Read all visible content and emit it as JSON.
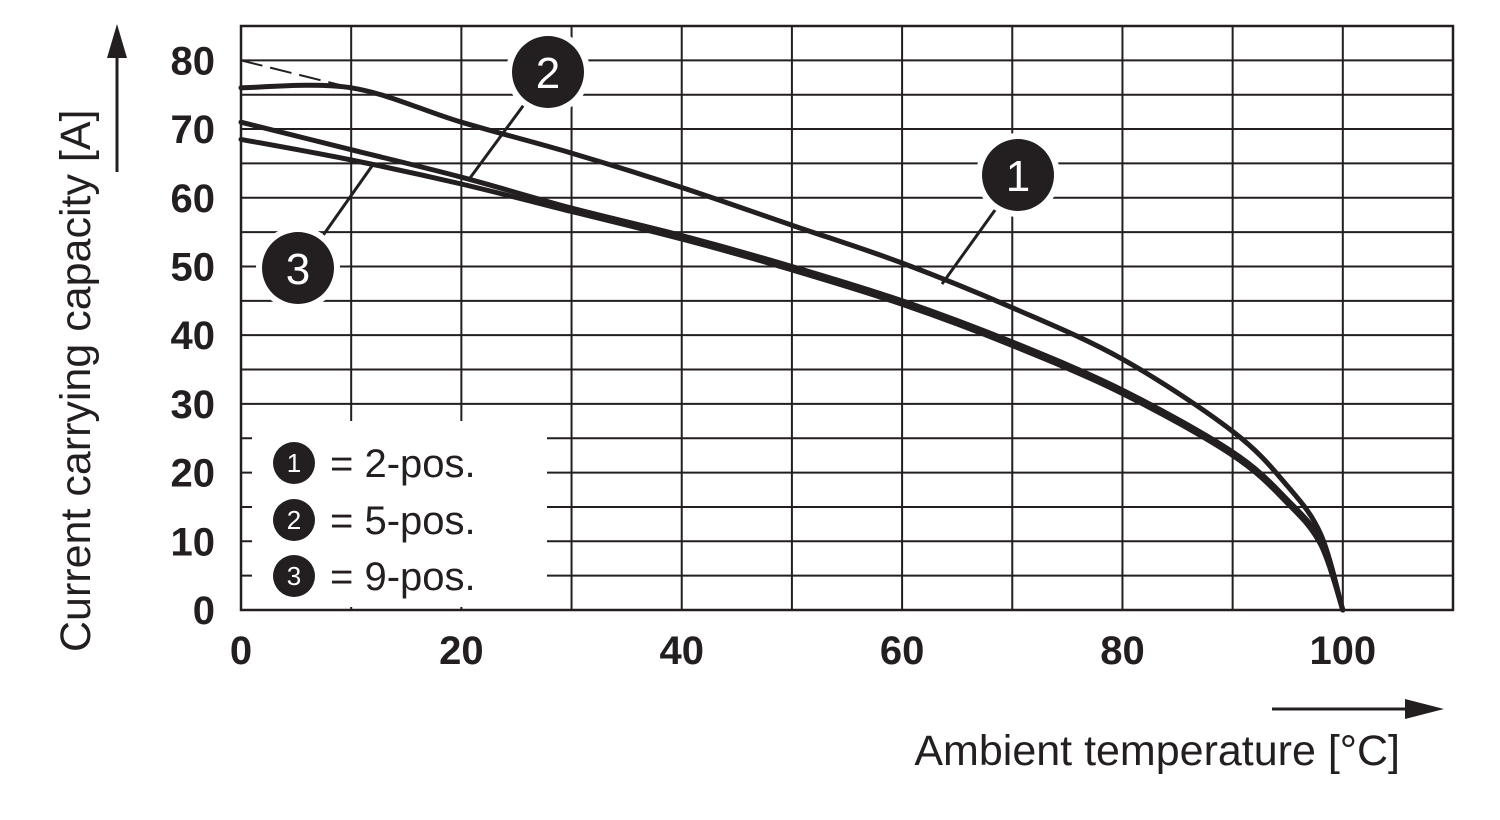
{
  "chart_data": {
    "type": "line",
    "xlabel": "Ambient temperature [°C]",
    "ylabel": "Current carrying capacity [A]",
    "xlim": [
      0,
      110
    ],
    "ylim": [
      0,
      85
    ],
    "x_ticks": [
      "0",
      "20",
      "40",
      "60",
      "80",
      "100"
    ],
    "y_ticks": [
      "0",
      "10",
      "20",
      "30",
      "40",
      "50",
      "60",
      "70",
      "80"
    ],
    "grid": true,
    "legend_position": "bottom-left",
    "legend": [
      {
        "marker": "1",
        "label": "= 2-pos."
      },
      {
        "marker": "2",
        "label": "= 5-pos."
      },
      {
        "marker": "3",
        "label": "= 9-pos."
      }
    ],
    "series": [
      {
        "marker": "1",
        "x": [
          0,
          10,
          20,
          30,
          40,
          50,
          60,
          70,
          80,
          90,
          95,
          98,
          100
        ],
        "y": [
          76,
          76,
          71,
          66.5,
          61.5,
          56,
          50.5,
          44,
          36.5,
          26,
          18,
          11,
          0
        ],
        "dashed_extension": {
          "x": [
            0,
            10
          ],
          "y": [
            80,
            76
          ]
        }
      },
      {
        "marker": "2",
        "x": [
          0,
          10,
          20,
          30,
          40,
          50,
          60,
          70,
          80,
          90,
          95,
          98,
          100
        ],
        "y": [
          71,
          67,
          63,
          58.5,
          54.5,
          50,
          45,
          39,
          32,
          23,
          16,
          10,
          0
        ]
      },
      {
        "marker": "3",
        "x": [
          0,
          10,
          20,
          30,
          40,
          50,
          60,
          70,
          80,
          90,
          95,
          98,
          100
        ],
        "y": [
          68.5,
          65.5,
          62,
          58,
          54,
          49.5,
          44.5,
          38.5,
          31.5,
          22.5,
          15.5,
          9.5,
          0
        ]
      }
    ]
  }
}
